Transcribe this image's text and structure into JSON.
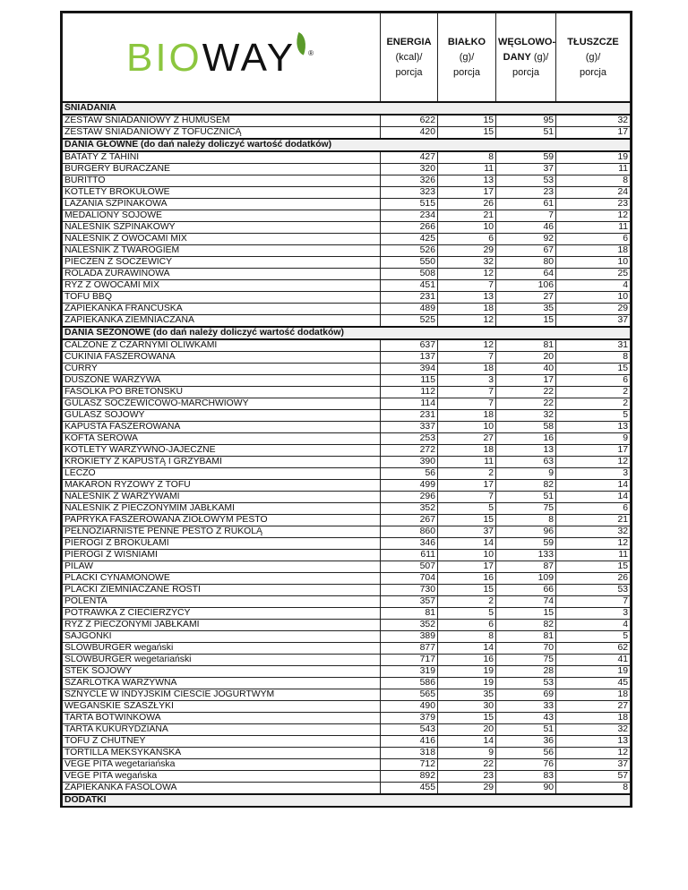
{
  "brand": {
    "logo_text_green": "BIO",
    "logo_text_black": "WAY",
    "brand_color": "#8cc63f"
  },
  "columns": [
    {
      "title": "ENERGIA",
      "unit": "(kcal)/",
      "per": "porcja"
    },
    {
      "title": "BIAŁKO",
      "unit": "(g)/",
      "per": "porcja"
    },
    {
      "title": "WĘGLOWO-",
      "title2": "DANY",
      "unit": "(g)/",
      "per": "porcja"
    },
    {
      "title": "TŁUSZCZE",
      "unit": "(g)/",
      "per": "porcja"
    }
  ],
  "sections": [
    {
      "title": "ŚNIADANIA",
      "rows": [
        [
          "ZESTAW ŚNIADANIOWY Z HUMUSEM",
          "622",
          "15",
          "95",
          "32"
        ],
        [
          "ZESTAW ŚNIADANIOWY Z TOFUCZNICĄ",
          "420",
          "15",
          "51",
          "17"
        ]
      ]
    },
    {
      "title": "DANIA GŁÓWNE (do dań należy doliczyć wartość dodatków)",
      "rows": [
        [
          "BATATY Z TAHINI",
          "427",
          "8",
          "59",
          "19"
        ],
        [
          "BURGERY BURACZANE",
          "320",
          "11",
          "37",
          "11"
        ],
        [
          "BURITTO",
          "326",
          "13",
          "53",
          "8"
        ],
        [
          "KOTLETY BROKUŁOWE",
          "323",
          "17",
          "23",
          "24"
        ],
        [
          "LAZANIA SZPINAKOWA",
          "515",
          "26",
          "61",
          "23"
        ],
        [
          "MEDALIONY SOJOWE",
          "234",
          "21",
          "7",
          "12"
        ],
        [
          "NALEŚNIK SZPINAKOWY",
          "266",
          "10",
          "46",
          "11"
        ],
        [
          "NALEŚNIK Z OWOCAMI MIX",
          "425",
          "6",
          "92",
          "6"
        ],
        [
          "NALEŚNIK Z TWAROGIEM",
          "526",
          "29",
          "67",
          "18"
        ],
        [
          "PIECZEŃ Z SOCZEWICY",
          "550",
          "32",
          "80",
          "10"
        ],
        [
          "ROLADA ŻURAWINOWA",
          "508",
          "12",
          "64",
          "25"
        ],
        [
          "RYŻ Z OWOCAMI MIX",
          "451",
          "7",
          "106",
          "4"
        ],
        [
          "TOFU BBQ",
          "231",
          "13",
          "27",
          "10"
        ],
        [
          "ZAPIEKANKA FRANCUSKA",
          "489",
          "18",
          "35",
          "29"
        ],
        [
          "ZAPIEKANKA ZIEMNIACZANA",
          "525",
          "12",
          "15",
          "37"
        ]
      ]
    },
    {
      "title": "DANIA SEZONOWE (do dań należy doliczyć wartość dodatków)",
      "rows": [
        [
          "CALZONE Z CZARNYMI OLIWKAMI",
          "637",
          "12",
          "81",
          "31"
        ],
        [
          "CUKINIA FASZEROWANA",
          "137",
          "7",
          "20",
          "8"
        ],
        [
          "CURRY",
          "394",
          "18",
          "40",
          "15"
        ],
        [
          "DUSZONE WARZYWA",
          "115",
          "3",
          "17",
          "6"
        ],
        [
          "FASOLKA PO BRETOŃSKU",
          "112",
          "7",
          "22",
          "2"
        ],
        [
          "GULASZ SOCZEWICOWO-MARCHWIOWY",
          "114",
          "7",
          "22",
          "2"
        ],
        [
          "GULASZ SOJOWY",
          "231",
          "18",
          "32",
          "5"
        ],
        [
          "KAPUSTA FASZEROWANA",
          "337",
          "10",
          "58",
          "13"
        ],
        [
          "KOFTA SEROWA",
          "253",
          "27",
          "16",
          "9"
        ],
        [
          "KOTLETY WARZYWNO-JAJECZNE",
          "272",
          "18",
          "13",
          "17"
        ],
        [
          "KROKIETY Z KAPUSTĄ I GRZYBAMI",
          "390",
          "11",
          "63",
          "12"
        ],
        [
          "LECZO",
          "56",
          "2",
          "9",
          "3"
        ],
        [
          "MAKARON RYŻOWY Z TOFU",
          "499",
          "17",
          "82",
          "14"
        ],
        [
          "NALEŚNIK Z WARZYWAMI",
          "296",
          "7",
          "51",
          "14"
        ],
        [
          "NALEŚNIK Z PIECZONYMIM JABŁKAMI",
          "352",
          "5",
          "75",
          "6"
        ],
        [
          "PAPRYKA FASZEROWANA ZIOŁOWYM PESTO",
          "267",
          "15",
          "8",
          "21"
        ],
        [
          "PEŁNOZIARNISTE PENNE PESTO Z RUKOLĄ",
          "860",
          "37",
          "96",
          "32"
        ],
        [
          "PIEROGI Z BROKUŁAMI",
          "346",
          "14",
          "59",
          "12"
        ],
        [
          "PIEROGI Z WIŚNIAMI",
          "611",
          "10",
          "133",
          "11"
        ],
        [
          "PILAW",
          "507",
          "17",
          "87",
          "15"
        ],
        [
          "PLACKI CYNAMONOWE",
          "704",
          "16",
          "109",
          "26"
        ],
        [
          "PLACKI ZIEMNIACZANE ROSTI",
          "730",
          "15",
          "66",
          "53"
        ],
        [
          "POLENTA",
          "357",
          "2",
          "74",
          "7"
        ],
        [
          "POTRAWKA Z CIECIERZYCY",
          "81",
          "5",
          "15",
          "3"
        ],
        [
          "RYŻ Z PIECZONYMI JABŁKAMI",
          "352",
          "6",
          "82",
          "4"
        ],
        [
          "SAJGONKI",
          "389",
          "8",
          "81",
          "5"
        ],
        [
          "SLOWBURGER wegański",
          "877",
          "14",
          "70",
          "62"
        ],
        [
          "SLOWBURGER wegetariański",
          "717",
          "16",
          "75",
          "41"
        ],
        [
          "STEK SOJOWY",
          "319",
          "19",
          "28",
          "19"
        ],
        [
          "SZARLOTKA WARZYWNA",
          "586",
          "19",
          "53",
          "45"
        ],
        [
          "SZNYCLE W INDYJSKIM CIEŚCIE JOGURTWYM",
          "565",
          "35",
          "69",
          "18"
        ],
        [
          "WEGAŃSKIE SZASZŁYKI",
          "490",
          "30",
          "33",
          "27"
        ],
        [
          "TARTA BOTWINKOWA",
          "379",
          "15",
          "43",
          "18"
        ],
        [
          "TARTA KUKURYDZIANA",
          "543",
          "20",
          "51",
          "32"
        ],
        [
          "TOFU Z CHUTNEY",
          "416",
          "14",
          "36",
          "13"
        ],
        [
          "TORTILLA MEKSYKAŃSKA",
          "318",
          "9",
          "56",
          "12"
        ],
        [
          "VEGE PITA wegetariańska",
          "712",
          "22",
          "76",
          "37"
        ],
        [
          "VEGE PITA wegańska",
          "892",
          "23",
          "83",
          "57"
        ],
        [
          "ZAPIEKANKA FASOLOWA",
          "455",
          "29",
          "90",
          "8"
        ]
      ]
    },
    {
      "title": "DODATKI",
      "rows": []
    }
  ]
}
